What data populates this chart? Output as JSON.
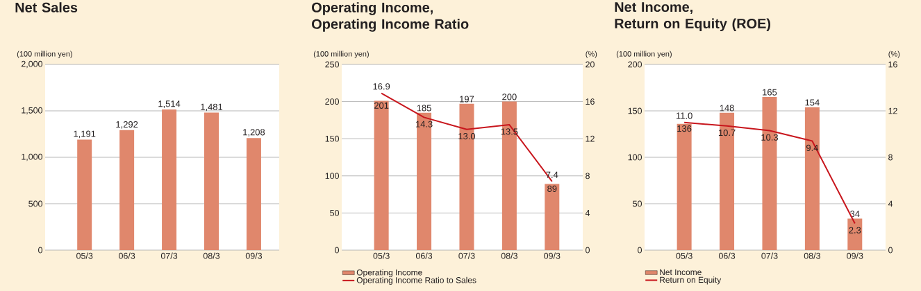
{
  "chart_data": [
    {
      "type": "bar",
      "title": "Net Sales",
      "ylabel": "(100 million yen)",
      "categories": [
        "05/3",
        "06/3",
        "07/3",
        "08/3",
        "09/3"
      ],
      "series": [
        {
          "color": "#e0876c",
          "values": [
            1191,
            1292,
            1514,
            1481,
            1208
          ],
          "value_labels": [
            "1,191",
            "1,292",
            "1,514",
            "1,481",
            "1,208"
          ]
        }
      ],
      "ylim": [
        0,
        2000
      ],
      "yticks": [
        0,
        500,
        {
          "value": 1000,
          "label": "1,000"
        },
        {
          "value": 1500,
          "label": "1,500"
        },
        {
          "value": 2000,
          "label": "2,000"
        }
      ],
      "grid": "y"
    },
    {
      "type": "bar",
      "title": "Operating Income, Operating Income Ratio",
      "ylabel": "(100 million yen)",
      "y2label": "(%)",
      "categories": [
        "05/3",
        "06/3",
        "07/3",
        "08/3",
        "09/3"
      ],
      "series": [
        {
          "name": "Operating Income",
          "type": "bar",
          "color": "#e0876c",
          "values": [
            201,
            185,
            197,
            200,
            89
          ],
          "value_labels": [
            "201",
            "185",
            "197",
            "200",
            "89"
          ]
        },
        {
          "name": "Operating Income Ratio to Sales",
          "type": "line",
          "axis": "y2",
          "color": "#c8161d",
          "values": [
            16.9,
            14.3,
            13.0,
            13.5,
            7.4
          ],
          "value_labels": [
            "16.9",
            "14.3",
            "13.0",
            "13.5",
            "7.4"
          ]
        }
      ],
      "ylim": [
        0,
        250
      ],
      "yticks": [
        0,
        50,
        100,
        150,
        200,
        250
      ],
      "y2lim": [
        0,
        20
      ],
      "y2ticks": [
        0,
        4,
        8,
        12,
        16,
        20
      ],
      "grid": "y",
      "legend": "bottom"
    },
    {
      "type": "bar",
      "title": "Net Income, Return on Equity (ROE)",
      "ylabel": "(100 million yen)",
      "y2label": "(%)",
      "categories": [
        "05/3",
        "06/3",
        "07/3",
        "08/3",
        "09/3"
      ],
      "series": [
        {
          "name": "Net Income",
          "type": "bar",
          "color": "#e0876c",
          "values": [
            136,
            148,
            165,
            154,
            34
          ],
          "value_labels": [
            "136",
            "148",
            "165",
            "154",
            "34"
          ]
        },
        {
          "name": "Return on Equity",
          "type": "line",
          "axis": "y2",
          "color": "#c8161d",
          "values": [
            11.0,
            10.7,
            10.3,
            9.4,
            2.3
          ],
          "value_labels": [
            "11.0",
            "10.7",
            "10.3",
            "9.4",
            "2.3"
          ]
        }
      ],
      "ylim": [
        0,
        200
      ],
      "yticks": [
        0,
        50,
        100,
        150,
        200
      ],
      "y2lim": [
        0,
        16
      ],
      "y2ticks": [
        0,
        4,
        8,
        12,
        16
      ],
      "grid": "y",
      "legend": "bottom"
    }
  ]
}
